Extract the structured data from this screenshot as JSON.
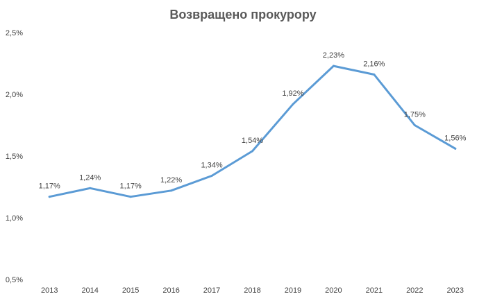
{
  "chart_data": {
    "type": "line",
    "title": "Возвращено прокурору",
    "xlabel": "",
    "ylabel": "",
    "categories": [
      "2013",
      "2014",
      "2015",
      "2016",
      "2017",
      "2018",
      "2019",
      "2020",
      "2021",
      "2022",
      "2023"
    ],
    "series": [
      {
        "values": [
          1.17,
          1.24,
          1.17,
          1.22,
          1.34,
          1.54,
          1.92,
          2.23,
          2.16,
          1.75,
          1.56
        ],
        "labels": [
          "1,17%",
          "1,24%",
          "1,17%",
          "1,22%",
          "1,34%",
          "1,54%",
          "1,92%",
          "2,23%",
          "2,16%",
          "1,75%",
          "1,56%"
        ],
        "color": "#5b9bd5"
      }
    ],
    "ylim": [
      0.5,
      2.5
    ],
    "yticks": [
      0.5,
      1.0,
      1.5,
      2.0,
      2.5
    ],
    "ytick_labels": [
      "0,5%",
      "1,0%",
      "1,5%",
      "2,0%",
      "2,5%"
    ],
    "grid": false,
    "legend": "none"
  }
}
